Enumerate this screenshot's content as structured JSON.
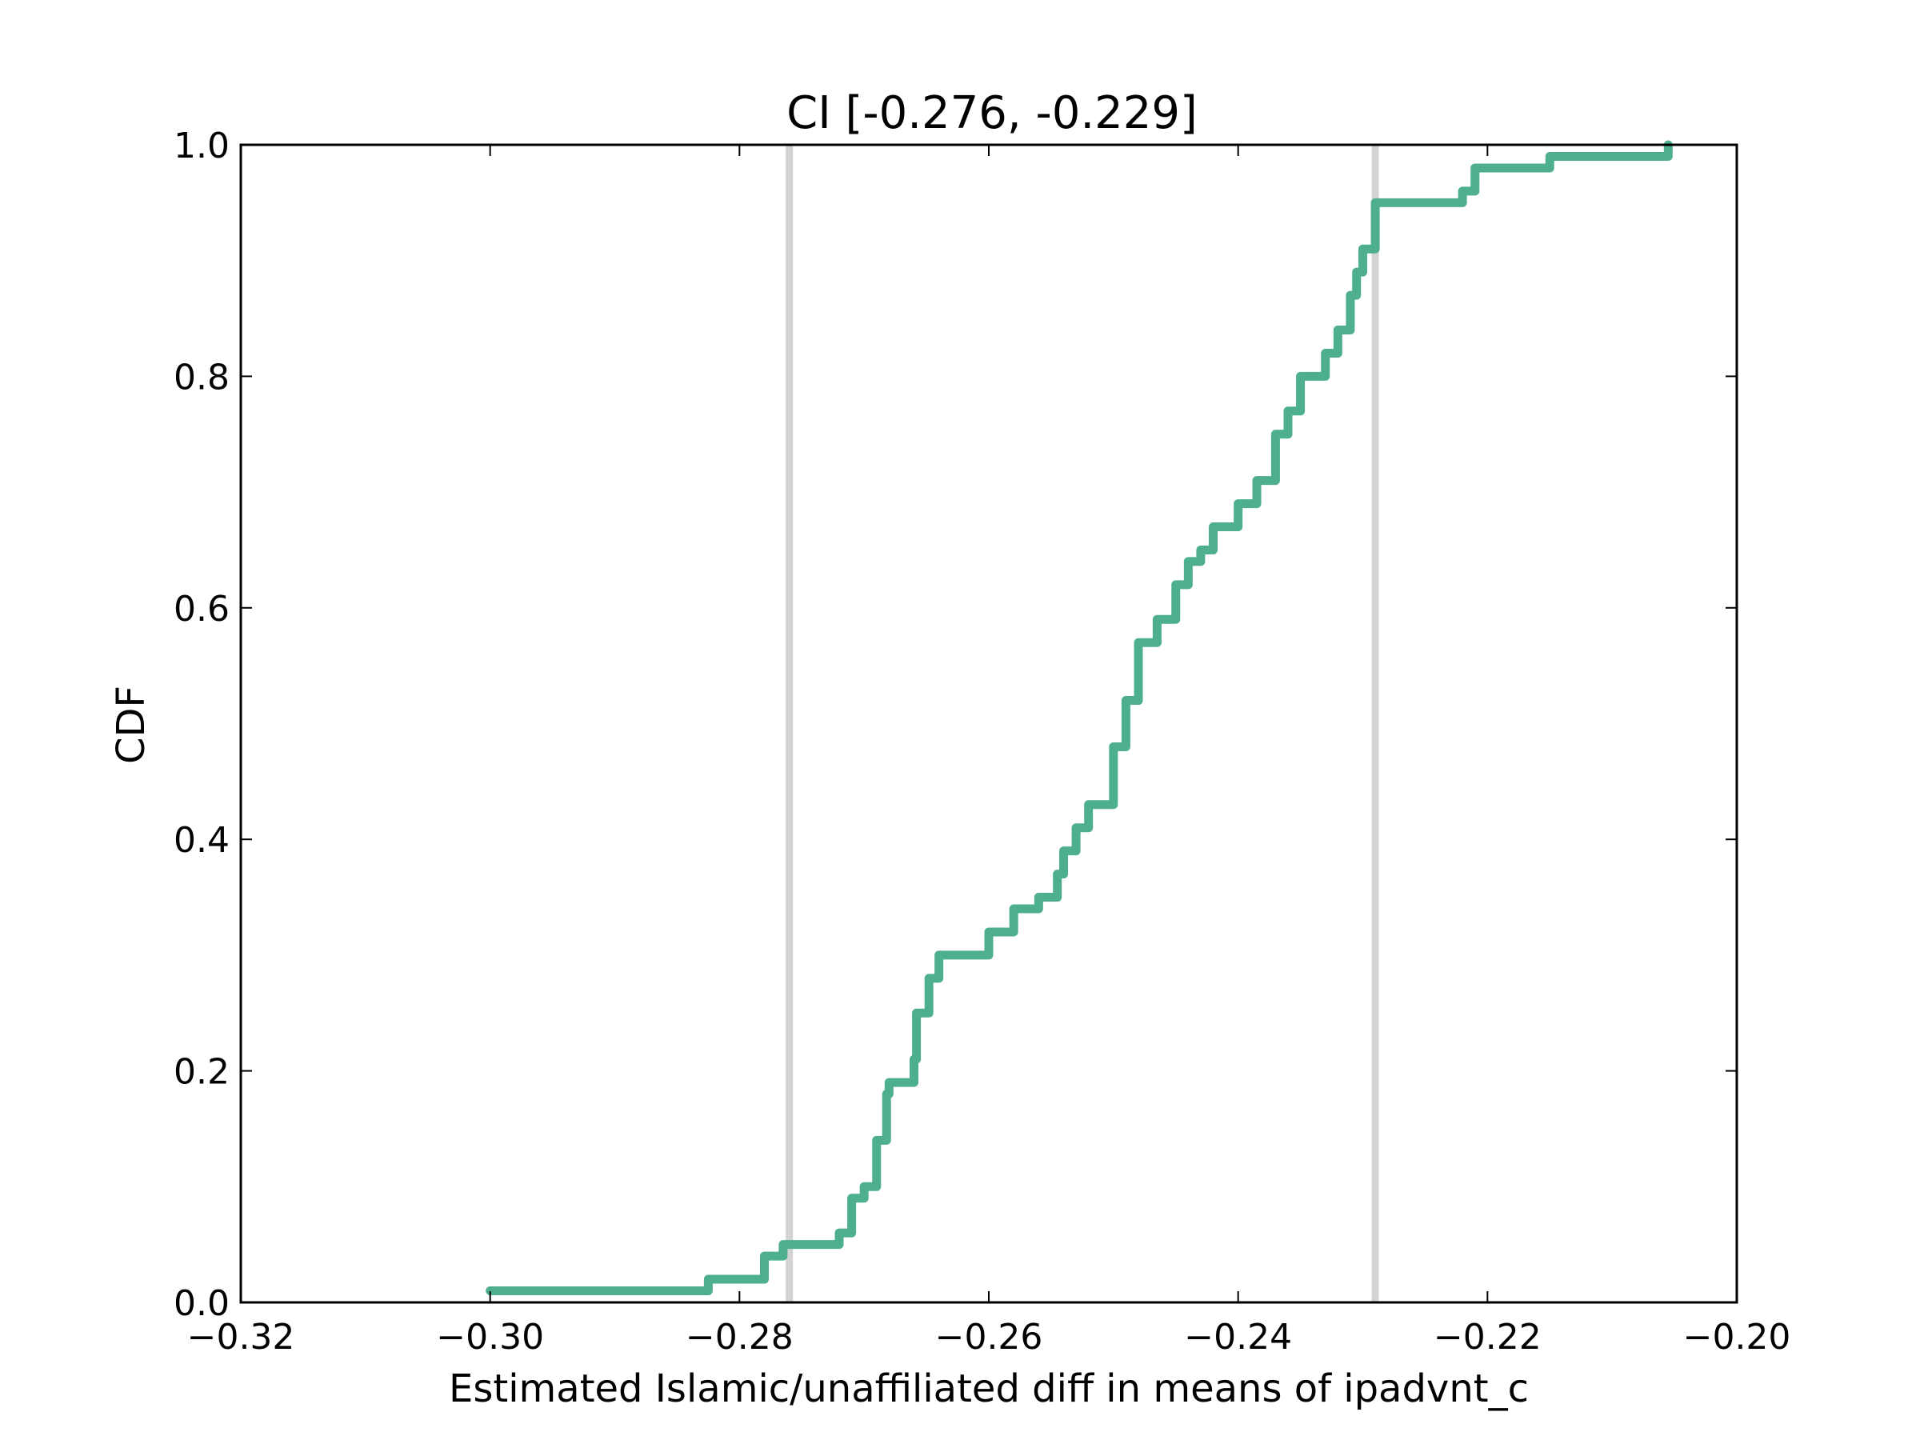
{
  "chart_data": {
    "type": "line",
    "subtype": "step-cdf",
    "title": "CI [-0.276, -0.229]",
    "xlabel": "Estimated Islamic/unaffiliated diff in means of ipadvnt_c",
    "ylabel": "CDF",
    "xlim": [
      -0.32,
      -0.2
    ],
    "ylim": [
      0.0,
      1.0
    ],
    "xticks": [
      -0.32,
      -0.3,
      -0.28,
      -0.26,
      -0.24,
      -0.22,
      -0.2
    ],
    "xtick_labels": [
      "−0.32",
      "−0.30",
      "−0.28",
      "−0.26",
      "−0.24",
      "−0.22",
      "−0.20"
    ],
    "yticks": [
      0.0,
      0.2,
      0.4,
      0.6,
      0.8,
      1.0
    ],
    "ytick_labels": [
      "0.0",
      "0.2",
      "0.4",
      "0.6",
      "0.8",
      "1.0"
    ],
    "grid": false,
    "ci_lines": {
      "values": [
        -0.276,
        -0.229
      ],
      "color": "#d3d3d3"
    },
    "series": [
      {
        "name": "CDF",
        "color": "#4daf8f",
        "x": [
          -0.3,
          -0.2825,
          -0.278,
          -0.2765,
          -0.272,
          -0.271,
          -0.27,
          -0.269,
          -0.2682,
          -0.268,
          -0.266,
          -0.2658,
          -0.2648,
          -0.264,
          -0.26,
          -0.258,
          -0.256,
          -0.2545,
          -0.254,
          -0.253,
          -0.252,
          -0.25,
          -0.249,
          -0.248,
          -0.2465,
          -0.245,
          -0.244,
          -0.243,
          -0.242,
          -0.24,
          -0.2385,
          -0.237,
          -0.236,
          -0.235,
          -0.233,
          -0.232,
          -0.231,
          -0.2305,
          -0.23,
          -0.229,
          -0.222,
          -0.221,
          -0.215,
          -0.2055
        ],
        "y": [
          0.01,
          0.02,
          0.04,
          0.05,
          0.06,
          0.09,
          0.1,
          0.14,
          0.18,
          0.19,
          0.21,
          0.25,
          0.28,
          0.3,
          0.32,
          0.34,
          0.35,
          0.37,
          0.39,
          0.41,
          0.43,
          0.48,
          0.52,
          0.57,
          0.59,
          0.62,
          0.64,
          0.65,
          0.67,
          0.69,
          0.71,
          0.75,
          0.77,
          0.8,
          0.82,
          0.84,
          0.87,
          0.89,
          0.91,
          0.95,
          0.96,
          0.98,
          0.99,
          1.0
        ]
      }
    ]
  }
}
